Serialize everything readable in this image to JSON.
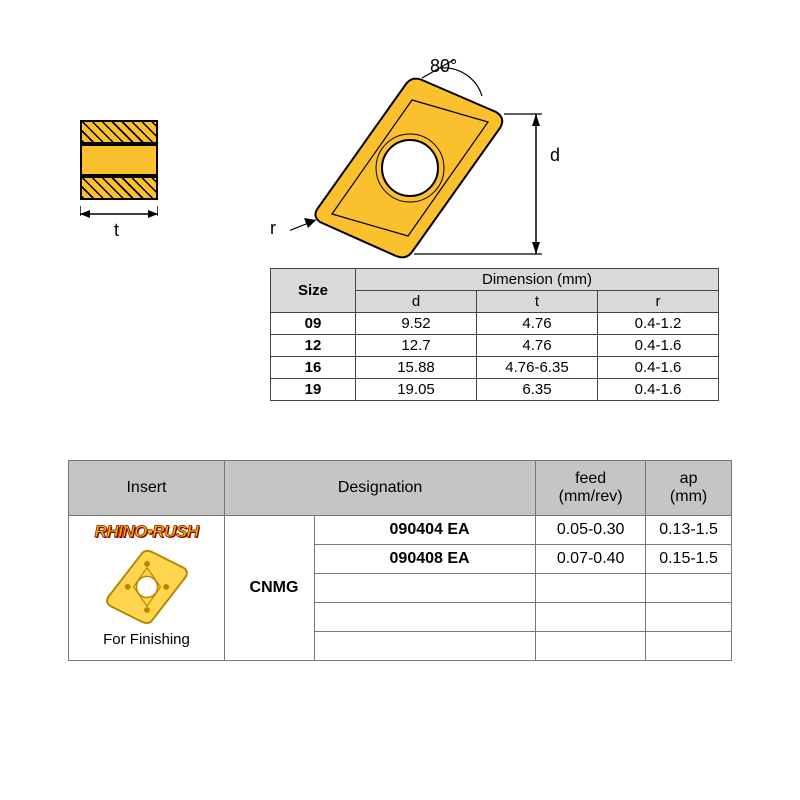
{
  "diagram": {
    "angle": "80°",
    "d": "d",
    "t": "t",
    "r": "r",
    "colors": {
      "insert_fill": "#fbc02d",
      "insert_stroke": "#000000",
      "hatch_color": "#000000"
    }
  },
  "dim_table": {
    "header_size": "Size",
    "header_dim": "Dimension (mm)",
    "sub_d": "d",
    "sub_t": "t",
    "sub_r": "r",
    "rows": [
      {
        "size": "09",
        "d": "9.52",
        "t": "4.76",
        "r": "0.4-1.2"
      },
      {
        "size": "12",
        "d": "12.7",
        "t": "4.76",
        "r": "0.4-1.6"
      },
      {
        "size": "16",
        "d": "15.88",
        "t": "4.76-6.35",
        "r": "0.4-1.6"
      },
      {
        "size": "19",
        "d": "19.05",
        "t": "6.35",
        "r": "0.4-1.6"
      }
    ],
    "style": {
      "header_bg": "#d9d9d9",
      "border": "#444444",
      "font_size": 15
    }
  },
  "spec_table": {
    "headers": {
      "insert": "Insert",
      "designation": "Designation",
      "feed": "feed\n(mm/rev)",
      "ap": "ap\n(mm)"
    },
    "brand": "RHINO•RUSH",
    "caption": "For Finishing",
    "type": "CNMG",
    "rows": [
      {
        "code": "090404 EA",
        "feed": "0.05-0.30",
        "ap": "0.13-1.5"
      },
      {
        "code": "090408 EA",
        "feed": "0.07-0.40",
        "ap": "0.15-1.5"
      }
    ],
    "blank_rows": 3,
    "style": {
      "header_bg": "#c5c5c5",
      "border": "#777777",
      "font_size": 16
    }
  }
}
